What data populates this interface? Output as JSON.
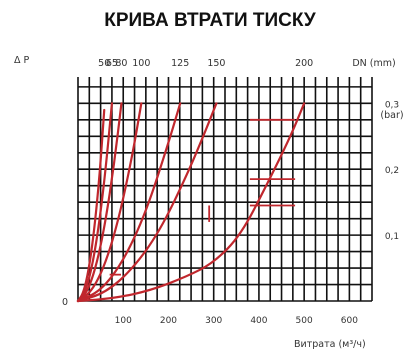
{
  "chart_data": {
    "type": "line",
    "title": "КРИВА ВТРАТИ ТИСКУ",
    "ylabel": "Δ P",
    "y_unit": "(bar)",
    "xlabel": "Витрата (м³/ч)",
    "top_axis_label": "DN (mm)",
    "x_ticks": [
      "100",
      "200",
      "300",
      "400",
      "500",
      "600"
    ],
    "y_ticks": [
      "0",
      "0,1",
      "0,2",
      "0,3"
    ],
    "origin_label": "0",
    "xlim": [
      0,
      650
    ],
    "ylim": [
      0,
      0.34
    ],
    "series": [
      {
        "name": "50",
        "x": [
          0,
          12,
          24,
          36,
          48,
          58
        ],
        "y": [
          0,
          0.012,
          0.048,
          0.108,
          0.192,
          0.29
        ]
      },
      {
        "name": "65",
        "x": [
          0,
          15,
          30,
          45,
          60,
          75
        ],
        "y": [
          0,
          0.012,
          0.048,
          0.108,
          0.192,
          0.3
        ]
      },
      {
        "name": "80",
        "x": [
          0,
          20,
          40,
          60,
          80,
          96
        ],
        "y": [
          0,
          0.013,
          0.052,
          0.117,
          0.208,
          0.3
        ]
      },
      {
        "name": "100",
        "x": [
          0,
          30,
          60,
          90,
          120,
          140
        ],
        "y": [
          0,
          0.014,
          0.055,
          0.124,
          0.22,
          0.3
        ]
      },
      {
        "name": "125",
        "x": [
          0,
          50,
          100,
          150,
          200,
          226
        ],
        "y": [
          0,
          0.015,
          0.06,
          0.134,
          0.24,
          0.3
        ]
      },
      {
        "name": "150",
        "x": [
          0,
          60,
          120,
          180,
          240,
          280,
          306
        ],
        "y": [
          0,
          0.012,
          0.048,
          0.105,
          0.19,
          0.255,
          0.3
        ]
      },
      {
        "name": "200",
        "x": [
          0,
          80,
          160,
          240,
          300,
          360,
          420,
          470,
          500
        ],
        "y": [
          0,
          0.004,
          0.016,
          0.037,
          0.058,
          0.1,
          0.18,
          0.25,
          0.3
        ]
      }
    ],
    "dn_labels": [
      "50",
      "65",
      "80",
      "100",
      "125",
      "150",
      "200"
    ],
    "grid": true,
    "colors": {
      "curve": "#c0272d",
      "grid": "#111111"
    }
  }
}
